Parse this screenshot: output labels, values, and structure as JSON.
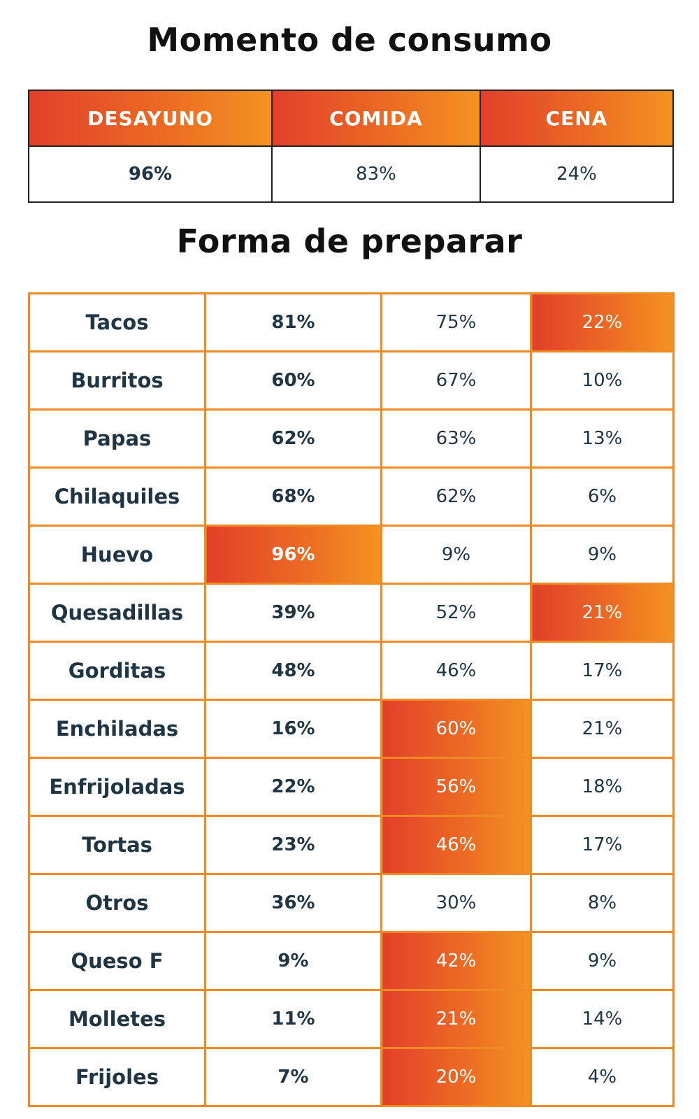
{
  "title1": "Momento de consumo",
  "consumo": {
    "headers": [
      "DESAYUNO",
      "COMIDA",
      "CENA"
    ],
    "values": [
      "96%",
      "83%",
      "24%"
    ]
  },
  "title2": "Forma de preparar",
  "colors": {
    "accent_start": "#e2402a",
    "accent_end": "#f39321",
    "border": "#ef8a24",
    "text": "#1f3543"
  },
  "preparar": {
    "rows": [
      {
        "label": "Tacos",
        "values": [
          "81%",
          "75%",
          "22%"
        ],
        "highlight": 2
      },
      {
        "label": "Burritos",
        "values": [
          "60%",
          "67%",
          "10%"
        ],
        "highlight": -1
      },
      {
        "label": "Papas",
        "values": [
          "62%",
          "63%",
          "13%"
        ],
        "highlight": -1
      },
      {
        "label": "Chilaquiles",
        "values": [
          "68%",
          "62%",
          "6%"
        ],
        "highlight": -1
      },
      {
        "label": "Huevo",
        "values": [
          "96%",
          "9%",
          "9%"
        ],
        "highlight": 0
      },
      {
        "label": "Quesadillas",
        "values": [
          "39%",
          "52%",
          "21%"
        ],
        "highlight": 2
      },
      {
        "label": "Gorditas",
        "values": [
          "48%",
          "46%",
          "17%"
        ],
        "highlight": -1
      },
      {
        "label": "Enchiladas",
        "values": [
          "16%",
          "60%",
          "21%"
        ],
        "highlight": 1
      },
      {
        "label": "Enfrijoladas",
        "values": [
          "22%",
          "56%",
          "18%"
        ],
        "highlight": 1
      },
      {
        "label": "Tortas",
        "values": [
          "23%",
          "46%",
          "17%"
        ],
        "highlight": 1
      },
      {
        "label": "Otros",
        "values": [
          "36%",
          "30%",
          "8%"
        ],
        "highlight": -1
      },
      {
        "label": "Queso F",
        "values": [
          "9%",
          "42%",
          "9%"
        ],
        "highlight": 1
      },
      {
        "label": "Molletes",
        "values": [
          "11%",
          "21%",
          "14%"
        ],
        "highlight": 1
      },
      {
        "label": "Frijoles",
        "values": [
          "7%",
          "20%",
          "4%"
        ],
        "highlight": 1
      }
    ]
  }
}
